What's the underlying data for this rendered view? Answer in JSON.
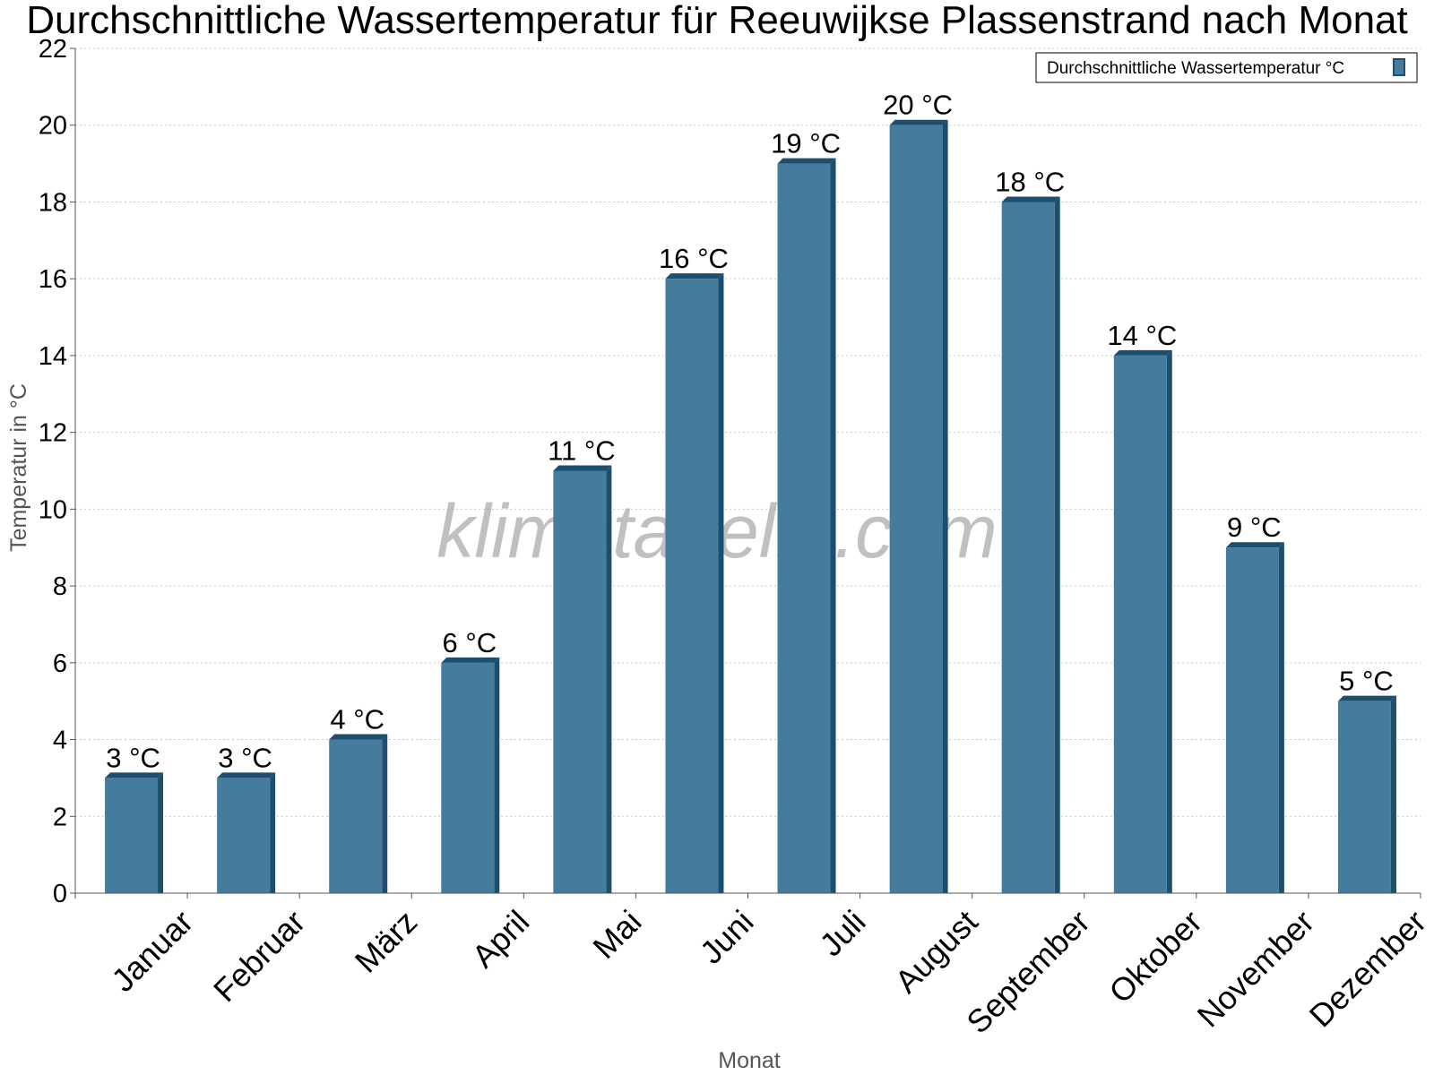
{
  "chart_data": {
    "type": "bar",
    "title": "Durchschnittliche Wassertemperatur für Reeuwijkse Plassenstrand nach Monat",
    "xlabel": "Monat",
    "ylabel": "Temperatur in °C",
    "categories": [
      "Januar",
      "Februar",
      "März",
      "April",
      "Mai",
      "Juni",
      "Juli",
      "August",
      "September",
      "Oktober",
      "November",
      "Dezember"
    ],
    "series": [
      {
        "name": "Durchschnittliche Wassertemperatur °C",
        "values": [
          3,
          3,
          4,
          6,
          11,
          16,
          19,
          20,
          18,
          14,
          9,
          5
        ],
        "labels": [
          "3 °C",
          "3 °C",
          "4 °C",
          "6 °C",
          "11 °C",
          "16 °C",
          "19 °C",
          "20 °C",
          "18 °C",
          "14 °C",
          "9 °C",
          "5 °C"
        ]
      }
    ],
    "ylim": [
      0,
      22
    ],
    "yticks": [
      0,
      2,
      4,
      6,
      8,
      10,
      12,
      14,
      16,
      18,
      20,
      22
    ],
    "grid": true,
    "legend_position": "top-right",
    "colors": {
      "bar": "#457b9d",
      "bar_dark": "#1d4e6e",
      "grid": "#c8c8c8",
      "axis": "#555555"
    }
  },
  "watermark": "klimatabelle.com"
}
